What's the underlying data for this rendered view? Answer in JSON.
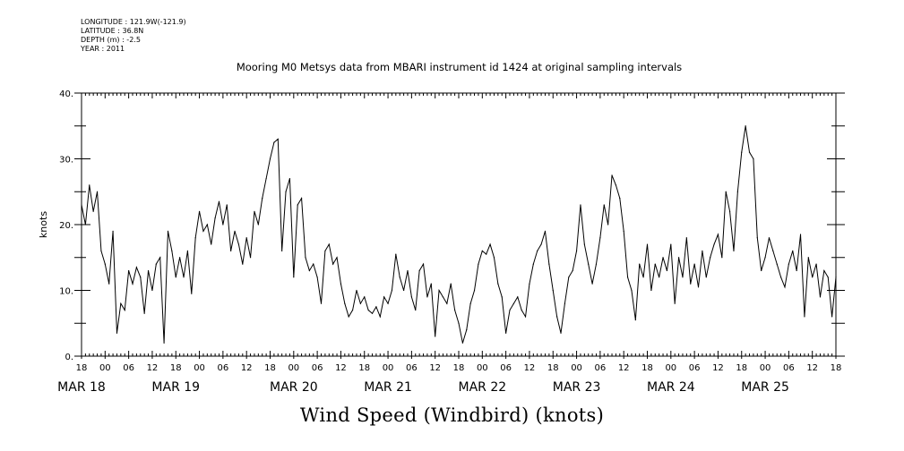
{
  "header": {
    "longitude": "LONGITUDE : 121.9W(-121.9)",
    "latitude": "LATITUDE : 36.8N",
    "depth": "DEPTH (m) : -2.5",
    "year": "YEAR : 2011"
  },
  "chart_data": {
    "type": "line",
    "title": "Mooring M0 Metsys data from MBARI instrument id 1424 at original sampling intervals",
    "xlabel": "Wind Speed (Windbird) (knots)",
    "ylabel": "knots",
    "ylim": [
      0,
      40
    ],
    "y_ticks": [
      "0.",
      "10.",
      "20.",
      "30.",
      "40."
    ],
    "x_range_hours": "2011-03-17T18:00 to 2011-03-25T18:00",
    "hour_ticks": [
      "18",
      "00",
      "06",
      "12",
      "18",
      "00",
      "06",
      "12",
      "18",
      "00",
      "06",
      "12",
      "18",
      "00",
      "06",
      "12",
      "18",
      "00",
      "06",
      "12",
      "18",
      "00",
      "06",
      "12",
      "18",
      "00",
      "06",
      "12",
      "18",
      "00",
      "06",
      "12",
      "18"
    ],
    "day_labels": [
      {
        "label": "MAR 18",
        "time": "2011-03-17T18:00"
      },
      {
        "label": "MAR 19",
        "time": "2011-03-18T18:00"
      },
      {
        "label": "MAR 20",
        "time": "2011-03-20T00:00"
      },
      {
        "label": "MAR 21",
        "time": "2011-03-21T00:00"
      },
      {
        "label": "MAR 22",
        "time": "2011-03-22T00:00"
      },
      {
        "label": "MAR 23",
        "time": "2011-03-23T00:00"
      },
      {
        "label": "MAR 24",
        "time": "2011-03-24T00:00"
      },
      {
        "label": "MAR 25",
        "time": "2011-03-25T00:00"
      }
    ],
    "grid": false,
    "series": [
      {
        "x_unit": "time",
        "points": [
          [
            "2011-03-17T18:00",
            23
          ],
          [
            "2011-03-17T19:00",
            20
          ],
          [
            "2011-03-17T20:00",
            26
          ],
          [
            "2011-03-17T21:00",
            22
          ],
          [
            "2011-03-17T22:00",
            25
          ],
          [
            "2011-03-17T23:00",
            16
          ],
          [
            "2011-03-18T00:00",
            14
          ],
          [
            "2011-03-18T01:00",
            11
          ],
          [
            "2011-03-18T02:00",
            19
          ],
          [
            "2011-03-18T03:00",
            3.5
          ],
          [
            "2011-03-18T04:00",
            8
          ],
          [
            "2011-03-18T05:00",
            7
          ],
          [
            "2011-03-18T06:00",
            13
          ],
          [
            "2011-03-18T07:00",
            11
          ],
          [
            "2011-03-18T08:00",
            13.5
          ],
          [
            "2011-03-18T09:00",
            12
          ],
          [
            "2011-03-18T10:00",
            6.5
          ],
          [
            "2011-03-18T11:00",
            13
          ],
          [
            "2011-03-18T12:00",
            10
          ],
          [
            "2011-03-18T13:00",
            14
          ],
          [
            "2011-03-18T14:00",
            15
          ],
          [
            "2011-03-18T15:00",
            2
          ],
          [
            "2011-03-18T16:00",
            19
          ],
          [
            "2011-03-18T17:00",
            16
          ],
          [
            "2011-03-18T18:00",
            12
          ],
          [
            "2011-03-18T19:00",
            15
          ],
          [
            "2011-03-18T20:00",
            12
          ],
          [
            "2011-03-18T21:00",
            16
          ],
          [
            "2011-03-18T22:00",
            9.5
          ],
          [
            "2011-03-18T23:00",
            18
          ],
          [
            "2011-03-19T00:00",
            22
          ],
          [
            "2011-03-19T01:00",
            19
          ],
          [
            "2011-03-19T02:00",
            20
          ],
          [
            "2011-03-19T03:00",
            17
          ],
          [
            "2011-03-19T04:00",
            21
          ],
          [
            "2011-03-19T05:00",
            23.5
          ],
          [
            "2011-03-19T06:00",
            20
          ],
          [
            "2011-03-19T07:00",
            23
          ],
          [
            "2011-03-19T08:00",
            16
          ],
          [
            "2011-03-19T09:00",
            19
          ],
          [
            "2011-03-19T10:00",
            17
          ],
          [
            "2011-03-19T11:00",
            14
          ],
          [
            "2011-03-19T12:00",
            18
          ],
          [
            "2011-03-19T13:00",
            15
          ],
          [
            "2011-03-19T14:00",
            22
          ],
          [
            "2011-03-19T15:00",
            20
          ],
          [
            "2011-03-19T16:00",
            24
          ],
          [
            "2011-03-19T17:00",
            27
          ],
          [
            "2011-03-19T18:00",
            30
          ],
          [
            "2011-03-19T19:00",
            32.5
          ],
          [
            "2011-03-19T20:00",
            33
          ],
          [
            "2011-03-19T21:00",
            16
          ],
          [
            "2011-03-19T22:00",
            25
          ],
          [
            "2011-03-19T23:00",
            27
          ],
          [
            "2011-03-20T00:00",
            12
          ],
          [
            "2011-03-20T01:00",
            23
          ],
          [
            "2011-03-20T02:00",
            24
          ],
          [
            "2011-03-20T03:00",
            15
          ],
          [
            "2011-03-20T04:00",
            13
          ],
          [
            "2011-03-20T05:00",
            14
          ],
          [
            "2011-03-20T06:00",
            12
          ],
          [
            "2011-03-20T07:00",
            8
          ],
          [
            "2011-03-20T08:00",
            16
          ],
          [
            "2011-03-20T09:00",
            17
          ],
          [
            "2011-03-20T10:00",
            14
          ],
          [
            "2011-03-20T11:00",
            15
          ],
          [
            "2011-03-20T12:00",
            11
          ],
          [
            "2011-03-20T13:00",
            8
          ],
          [
            "2011-03-20T14:00",
            6
          ],
          [
            "2011-03-20T15:00",
            7
          ],
          [
            "2011-03-20T16:00",
            10
          ],
          [
            "2011-03-20T17:00",
            8
          ],
          [
            "2011-03-20T18:00",
            9
          ],
          [
            "2011-03-20T19:00",
            7
          ],
          [
            "2011-03-20T20:00",
            6.5
          ],
          [
            "2011-03-20T21:00",
            7.5
          ],
          [
            "2011-03-20T22:00",
            6
          ],
          [
            "2011-03-20T23:00",
            9
          ],
          [
            "2011-03-21T00:00",
            8
          ],
          [
            "2011-03-21T01:00",
            10
          ],
          [
            "2011-03-21T02:00",
            15.5
          ],
          [
            "2011-03-21T03:00",
            12
          ],
          [
            "2011-03-21T04:00",
            10
          ],
          [
            "2011-03-21T05:00",
            13
          ],
          [
            "2011-03-21T06:00",
            9
          ],
          [
            "2011-03-21T07:00",
            7
          ],
          [
            "2011-03-21T08:00",
            13
          ],
          [
            "2011-03-21T09:00",
            14
          ],
          [
            "2011-03-21T10:00",
            9
          ],
          [
            "2011-03-21T11:00",
            11
          ],
          [
            "2011-03-21T12:00",
            3
          ],
          [
            "2011-03-21T13:00",
            10
          ],
          [
            "2011-03-21T14:00",
            9
          ],
          [
            "2011-03-21T15:00",
            8
          ],
          [
            "2011-03-21T16:00",
            11
          ],
          [
            "2011-03-21T17:00",
            7
          ],
          [
            "2011-03-21T18:00",
            5
          ],
          [
            "2011-03-21T19:00",
            2
          ],
          [
            "2011-03-21T20:00",
            4
          ],
          [
            "2011-03-21T21:00",
            8
          ],
          [
            "2011-03-21T22:00",
            10
          ],
          [
            "2011-03-21T23:00",
            14
          ],
          [
            "2011-03-22T00:00",
            16
          ],
          [
            "2011-03-22T01:00",
            15.5
          ],
          [
            "2011-03-22T02:00",
            17
          ],
          [
            "2011-03-22T03:00",
            15
          ],
          [
            "2011-03-22T04:00",
            11
          ],
          [
            "2011-03-22T05:00",
            9
          ],
          [
            "2011-03-22T06:00",
            3.5
          ],
          [
            "2011-03-22T07:00",
            7
          ],
          [
            "2011-03-22T08:00",
            8
          ],
          [
            "2011-03-22T09:00",
            9
          ],
          [
            "2011-03-22T10:00",
            7
          ],
          [
            "2011-03-22T11:00",
            6
          ],
          [
            "2011-03-22T12:00",
            11
          ],
          [
            "2011-03-22T13:00",
            14
          ],
          [
            "2011-03-22T14:00",
            16
          ],
          [
            "2011-03-22T15:00",
            17
          ],
          [
            "2011-03-22T16:00",
            19
          ],
          [
            "2011-03-22T17:00",
            14
          ],
          [
            "2011-03-22T18:00",
            10
          ],
          [
            "2011-03-22T19:00",
            6
          ],
          [
            "2011-03-22T20:00",
            3.5
          ],
          [
            "2011-03-22T21:00",
            8
          ],
          [
            "2011-03-22T22:00",
            12
          ],
          [
            "2011-03-22T23:00",
            13
          ],
          [
            "2011-03-23T00:00",
            16
          ],
          [
            "2011-03-23T01:00",
            23
          ],
          [
            "2011-03-23T02:00",
            17
          ],
          [
            "2011-03-23T03:00",
            14
          ],
          [
            "2011-03-23T04:00",
            11
          ],
          [
            "2011-03-23T05:00",
            14
          ],
          [
            "2011-03-23T06:00",
            18
          ],
          [
            "2011-03-23T07:00",
            23
          ],
          [
            "2011-03-23T08:00",
            20
          ],
          [
            "2011-03-23T09:00",
            27.5
          ],
          [
            "2011-03-23T10:00",
            26
          ],
          [
            "2011-03-23T11:00",
            24
          ],
          [
            "2011-03-23T12:00",
            19
          ],
          [
            "2011-03-23T13:00",
            12
          ],
          [
            "2011-03-23T14:00",
            10
          ],
          [
            "2011-03-23T15:00",
            5.5
          ],
          [
            "2011-03-23T16:00",
            14
          ],
          [
            "2011-03-23T17:00",
            12
          ],
          [
            "2011-03-23T18:00",
            17
          ],
          [
            "2011-03-23T19:00",
            10
          ],
          [
            "2011-03-23T20:00",
            14
          ],
          [
            "2011-03-23T21:00",
            12
          ],
          [
            "2011-03-23T22:00",
            15
          ],
          [
            "2011-03-23T23:00",
            13
          ],
          [
            "2011-03-24T00:00",
            17
          ],
          [
            "2011-03-24T01:00",
            8
          ],
          [
            "2011-03-24T02:00",
            15
          ],
          [
            "2011-03-24T03:00",
            12
          ],
          [
            "2011-03-24T04:00",
            18
          ],
          [
            "2011-03-24T05:00",
            11
          ],
          [
            "2011-03-24T06:00",
            14
          ],
          [
            "2011-03-24T07:00",
            10.5
          ],
          [
            "2011-03-24T08:00",
            16
          ],
          [
            "2011-03-24T09:00",
            12
          ],
          [
            "2011-03-24T10:00",
            15
          ],
          [
            "2011-03-24T11:00",
            17
          ],
          [
            "2011-03-24T12:00",
            18.5
          ],
          [
            "2011-03-24T13:00",
            15
          ],
          [
            "2011-03-24T14:00",
            25
          ],
          [
            "2011-03-24T15:00",
            22
          ],
          [
            "2011-03-24T16:00",
            16
          ],
          [
            "2011-03-24T17:00",
            25
          ],
          [
            "2011-03-24T18:00",
            31
          ],
          [
            "2011-03-24T19:00",
            35
          ],
          [
            "2011-03-24T20:00",
            31
          ],
          [
            "2011-03-24T21:00",
            30
          ],
          [
            "2011-03-24T22:00",
            18
          ],
          [
            "2011-03-24T23:00",
            13
          ],
          [
            "2011-03-25T00:00",
            15
          ],
          [
            "2011-03-25T01:00",
            18
          ],
          [
            "2011-03-25T02:00",
            16
          ],
          [
            "2011-03-25T03:00",
            14
          ],
          [
            "2011-03-25T04:00",
            12
          ],
          [
            "2011-03-25T05:00",
            10.5
          ],
          [
            "2011-03-25T06:00",
            14
          ],
          [
            "2011-03-25T07:00",
            16
          ],
          [
            "2011-03-25T08:00",
            13
          ],
          [
            "2011-03-25T09:00",
            18.5
          ],
          [
            "2011-03-25T10:00",
            6
          ],
          [
            "2011-03-25T11:00",
            15
          ],
          [
            "2011-03-25T12:00",
            12
          ],
          [
            "2011-03-25T13:00",
            14
          ],
          [
            "2011-03-25T14:00",
            9
          ],
          [
            "2011-03-25T15:00",
            13
          ],
          [
            "2011-03-25T16:00",
            12
          ],
          [
            "2011-03-25T17:00",
            6
          ],
          [
            "2011-03-25T18:00",
            12
          ]
        ]
      }
    ]
  }
}
